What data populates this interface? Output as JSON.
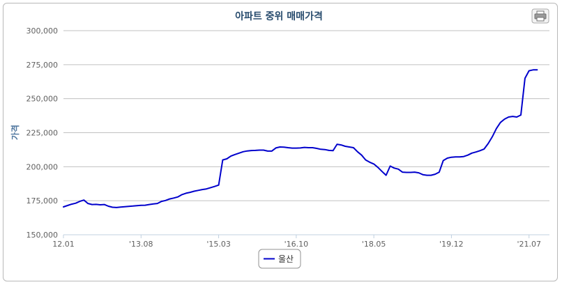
{
  "chart_data": {
    "type": "line",
    "title": "아파트 중위 매매가격",
    "ylabel": "가격",
    "xlabel": "",
    "ylim": [
      150000,
      300000
    ],
    "yticks": [
      "150,000",
      "175,000",
      "200,000",
      "225,000",
      "250,000",
      "275,000",
      "300,000"
    ],
    "ytick_values": [
      150000,
      175000,
      200000,
      225000,
      250000,
      275000,
      300000
    ],
    "xticks": [
      "12.01",
      "'13.08",
      "'15.03",
      "'16.10",
      "'18.05",
      "'19.12",
      "'21.07"
    ],
    "xtick_months": [
      0,
      19,
      38,
      57,
      76,
      95,
      114
    ],
    "x_range_months": [
      0,
      119
    ],
    "grid": true,
    "legend_position": "bottom-center",
    "series": [
      {
        "name": "울산",
        "color": "#0000cc",
        "points": [
          [
            0,
            170500
          ],
          [
            1,
            171500
          ],
          [
            2,
            172500
          ],
          [
            3,
            173200
          ],
          [
            4,
            174500
          ],
          [
            5,
            175500
          ],
          [
            6,
            173000
          ],
          [
            7,
            172200
          ],
          [
            8,
            172300
          ],
          [
            9,
            172000
          ],
          [
            10,
            172200
          ],
          [
            11,
            171000
          ],
          [
            12,
            170200
          ],
          [
            13,
            170000
          ],
          [
            14,
            170300
          ],
          [
            15,
            170600
          ],
          [
            16,
            170900
          ],
          [
            17,
            171100
          ],
          [
            18,
            171400
          ],
          [
            19,
            171600
          ],
          [
            20,
            171700
          ],
          [
            21,
            172200
          ],
          [
            22,
            172700
          ],
          [
            23,
            173000
          ],
          [
            24,
            174500
          ],
          [
            25,
            175200
          ],
          [
            26,
            176300
          ],
          [
            27,
            177000
          ],
          [
            28,
            177800
          ],
          [
            29,
            179500
          ],
          [
            30,
            180500
          ],
          [
            31,
            181200
          ],
          [
            32,
            182000
          ],
          [
            33,
            182600
          ],
          [
            34,
            183200
          ],
          [
            35,
            183700
          ],
          [
            36,
            184600
          ],
          [
            37,
            185500
          ],
          [
            38,
            186500
          ],
          [
            39,
            205000
          ],
          [
            40,
            205800
          ],
          [
            41,
            207800
          ],
          [
            42,
            209000
          ],
          [
            43,
            210000
          ],
          [
            44,
            211000
          ],
          [
            45,
            211600
          ],
          [
            46,
            211900
          ],
          [
            47,
            212000
          ],
          [
            48,
            212200
          ],
          [
            49,
            212200
          ],
          [
            50,
            211500
          ],
          [
            51,
            211500
          ],
          [
            52,
            213800
          ],
          [
            53,
            214500
          ],
          [
            54,
            214400
          ],
          [
            55,
            214000
          ],
          [
            56,
            213700
          ],
          [
            57,
            213700
          ],
          [
            58,
            213800
          ],
          [
            59,
            214200
          ],
          [
            60,
            214000
          ],
          [
            61,
            214000
          ],
          [
            62,
            213500
          ],
          [
            63,
            212800
          ],
          [
            64,
            212600
          ],
          [
            65,
            212000
          ],
          [
            66,
            211800
          ],
          [
            67,
            216500
          ],
          [
            68,
            216000
          ],
          [
            69,
            215000
          ],
          [
            70,
            214500
          ],
          [
            71,
            214000
          ],
          [
            72,
            211000
          ],
          [
            73,
            208500
          ],
          [
            74,
            205000
          ],
          [
            75,
            203300
          ],
          [
            76,
            202000
          ],
          [
            77,
            199500
          ],
          [
            78,
            196500
          ],
          [
            79,
            193700
          ],
          [
            80,
            200500
          ],
          [
            81,
            199000
          ],
          [
            82,
            198200
          ],
          [
            83,
            196000
          ],
          [
            84,
            195800
          ],
          [
            85,
            195800
          ],
          [
            86,
            196000
          ],
          [
            87,
            195500
          ],
          [
            88,
            194200
          ],
          [
            89,
            193700
          ],
          [
            90,
            193700
          ],
          [
            91,
            194500
          ],
          [
            92,
            196000
          ],
          [
            93,
            204500
          ],
          [
            94,
            206300
          ],
          [
            95,
            207000
          ],
          [
            96,
            207200
          ],
          [
            97,
            207200
          ],
          [
            98,
            207500
          ],
          [
            99,
            208500
          ],
          [
            100,
            210000
          ],
          [
            101,
            210800
          ],
          [
            102,
            211800
          ],
          [
            103,
            213000
          ],
          [
            104,
            217000
          ],
          [
            105,
            222000
          ],
          [
            106,
            228000
          ],
          [
            107,
            232500
          ],
          [
            108,
            235000
          ],
          [
            109,
            236500
          ],
          [
            110,
            237000
          ],
          [
            111,
            236500
          ],
          [
            112,
            238000
          ],
          [
            113,
            265000
          ],
          [
            114,
            270500
          ],
          [
            115,
            271200
          ],
          [
            116,
            271200
          ]
        ]
      }
    ]
  },
  "toolbar": {
    "print_icon": "print-icon"
  }
}
